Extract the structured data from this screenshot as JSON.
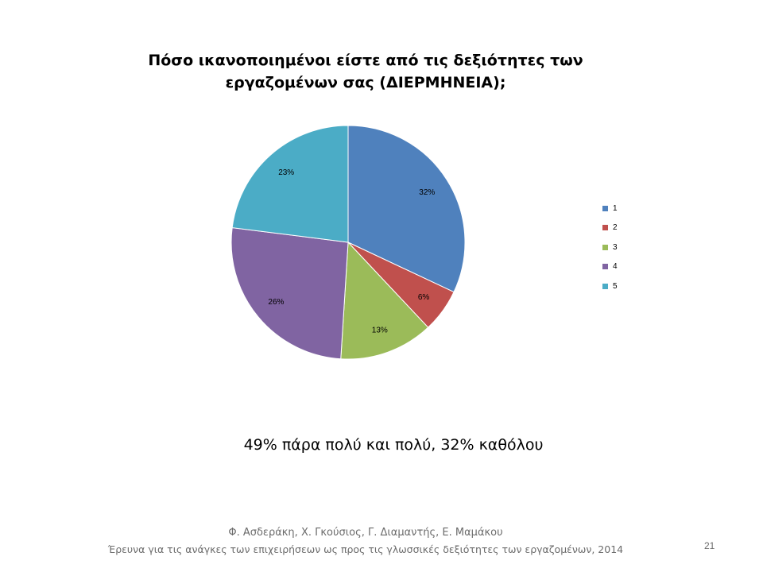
{
  "slide": {
    "summary": "49% πάρα πολύ και πολύ, 32% καθόλου",
    "authors": "Φ. Ασδεράκη, Χ. Γκούσιος, Γ. Διαμαντής, Ε. Μαμάκου",
    "survey_title": "Έρευνα για τις ανάγκες των επιχειρήσεων ως προς τις γλωσσικές δεξιότητες των εργαζομένων, 2014",
    "page_number": "21"
  },
  "chart_data": {
    "type": "pie",
    "title_line1": "Πόσο ικανοποιημένοι είστε από τις δεξιότητες των",
    "title_line2": "εργαζομένων σας (ΔΙΕΡΜΗΝΕΙΑ);",
    "start_angle": "12 o'clock",
    "direction": "clockwise",
    "legend_position": "right",
    "slices": [
      {
        "label": "1",
        "value": 32,
        "display": "32%",
        "color": "#4F81BD"
      },
      {
        "label": "2",
        "value": 6,
        "display": "6%",
        "color": "#C0504D"
      },
      {
        "label": "3",
        "value": 13,
        "display": "13%",
        "color": "#9BBB59"
      },
      {
        "label": "4",
        "value": 26,
        "display": "26%",
        "color": "#8064A2"
      },
      {
        "label": "5",
        "value": 23,
        "display": "23%",
        "color": "#4BACC6"
      }
    ]
  }
}
